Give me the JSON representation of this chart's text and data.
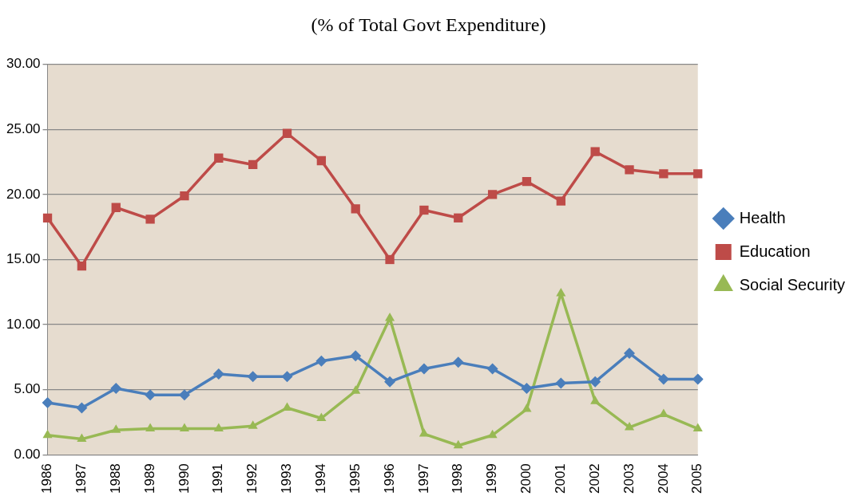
{
  "chart_data": {
    "type": "line",
    "title": "(% of Total Govt Expenditure)",
    "categories": [
      "1986",
      "1987",
      "1988",
      "1989",
      "1990",
      "1991",
      "1992",
      "1993",
      "1994",
      "1995",
      "1996",
      "1997",
      "1998",
      "1999",
      "2000",
      "2001",
      "2002",
      "2003",
      "2004",
      "2005"
    ],
    "series": [
      {
        "name": "Health",
        "color": "#4a7ebb",
        "marker": "diamond",
        "values": [
          4.0,
          3.6,
          5.1,
          4.6,
          4.6,
          6.2,
          6.0,
          6.0,
          7.2,
          7.6,
          5.6,
          6.6,
          7.1,
          6.6,
          5.1,
          5.5,
          5.6,
          7.8,
          5.8,
          5.8
        ]
      },
      {
        "name": "Education",
        "color": "#be4b48",
        "marker": "square",
        "values": [
          18.2,
          14.5,
          19.0,
          18.1,
          19.9,
          22.8,
          22.3,
          24.7,
          22.6,
          18.9,
          15.0,
          18.8,
          18.2,
          20.0,
          21.0,
          19.5,
          23.3,
          21.9,
          21.6,
          21.6
        ]
      },
      {
        "name": "Social Security",
        "color": "#98b954",
        "marker": "triangle",
        "values": [
          1.5,
          1.2,
          1.9,
          2.0,
          2.0,
          2.0,
          2.2,
          3.6,
          2.8,
          4.9,
          10.5,
          1.6,
          0.7,
          1.5,
          3.5,
          12.4,
          4.1,
          2.1,
          3.1,
          2.0
        ]
      }
    ],
    "ylim": [
      0,
      30
    ],
    "yticks": [
      {
        "value": 0,
        "label": "0.00"
      },
      {
        "value": 5,
        "label": "5.00"
      },
      {
        "value": 10,
        "label": "10.00"
      },
      {
        "value": 15,
        "label": "15.00"
      },
      {
        "value": 20,
        "label": "20.00"
      },
      {
        "value": 25,
        "label": "25.00"
      },
      {
        "value": 30,
        "label": "30.00"
      }
    ],
    "grid": "y",
    "legend": "right",
    "line_style": "solid"
  }
}
